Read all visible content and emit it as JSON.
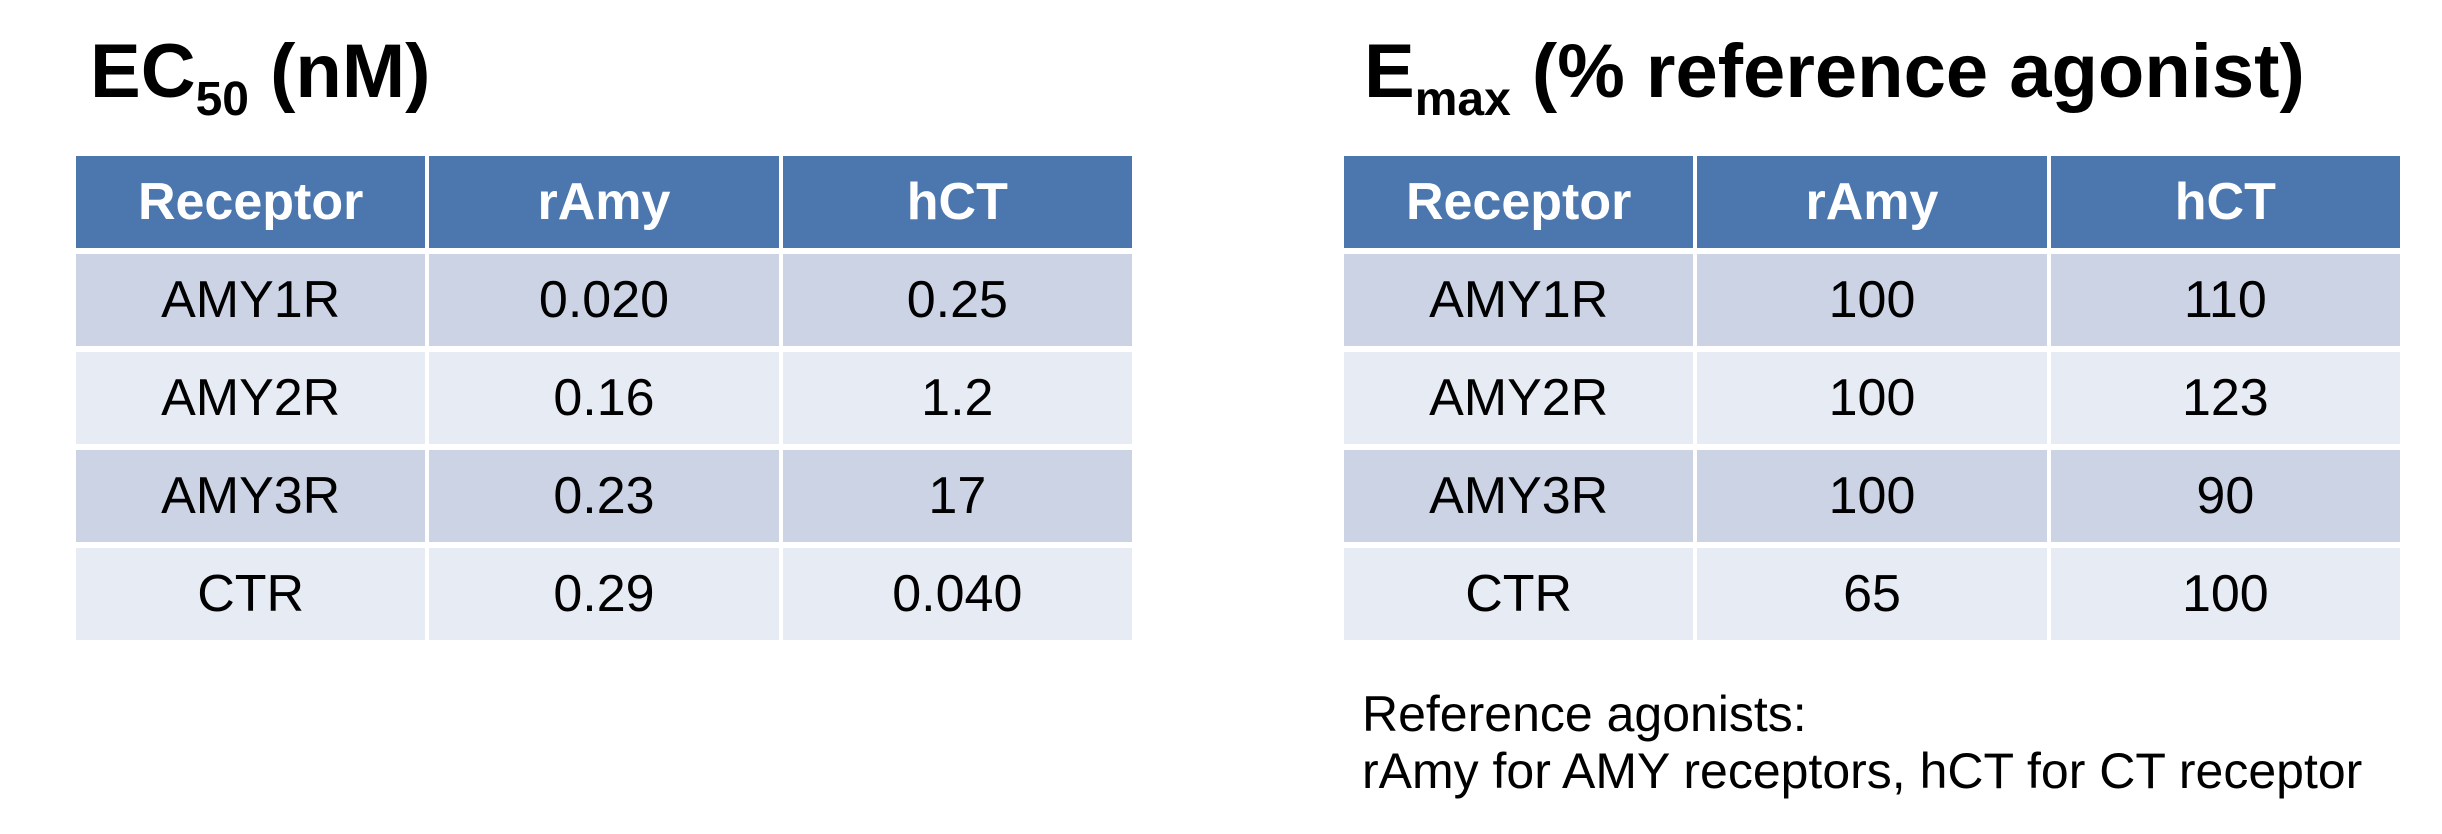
{
  "colors": {
    "header_bg": "#4B76AE",
    "header_text": "#FFFFFF",
    "row_band_dark": "#CBD3E5",
    "row_band_light": "#E7EBF3",
    "background": "#FFFFFF",
    "text": "#000000"
  },
  "left_table": {
    "title_prefix": "EC",
    "title_sub": "50",
    "title_suffix": " (nM)",
    "columns": [
      "Receptor",
      "rAmy",
      "hCT"
    ],
    "rows": [
      {
        "cells": [
          "AMY1R",
          "0.020",
          "0.25"
        ]
      },
      {
        "cells": [
          "AMY2R",
          "0.16",
          "1.2"
        ]
      },
      {
        "cells": [
          "AMY3R",
          "0.23",
          "17"
        ]
      },
      {
        "cells": [
          "CTR",
          "0.29",
          "0.040"
        ]
      }
    ]
  },
  "right_table": {
    "title_prefix": "E",
    "title_sub": "max",
    "title_suffix": " (% reference agonist)",
    "columns": [
      "Receptor",
      "rAmy",
      "hCT"
    ],
    "rows": [
      {
        "cells": [
          "AMY1R",
          "100",
          "110"
        ]
      },
      {
        "cells": [
          "AMY2R",
          "100",
          "123"
        ]
      },
      {
        "cells": [
          "AMY3R",
          "100",
          "90"
        ]
      },
      {
        "cells": [
          "CTR",
          "65",
          "100"
        ]
      }
    ]
  },
  "footnote": {
    "line1": "Reference agonists:",
    "line2": "rAmy for AMY receptors, hCT for CT receptor"
  },
  "chart_data": [
    {
      "type": "table",
      "title": "EC50 (nM)",
      "columns": [
        "Receptor",
        "rAmy",
        "hCT"
      ],
      "rows": [
        [
          "AMY1R",
          0.02,
          0.25
        ],
        [
          "AMY2R",
          0.16,
          1.2
        ],
        [
          "AMY3R",
          0.23,
          17
        ],
        [
          "CTR",
          0.29,
          0.04
        ]
      ]
    },
    {
      "type": "table",
      "title": "Emax (% reference agonist)",
      "columns": [
        "Receptor",
        "rAmy",
        "hCT"
      ],
      "rows": [
        [
          "AMY1R",
          100,
          110
        ],
        [
          "AMY2R",
          100,
          123
        ],
        [
          "AMY3R",
          100,
          90
        ],
        [
          "CTR",
          65,
          100
        ]
      ],
      "note": "Reference agonists: rAmy for AMY receptors, hCT for CT receptor"
    }
  ]
}
